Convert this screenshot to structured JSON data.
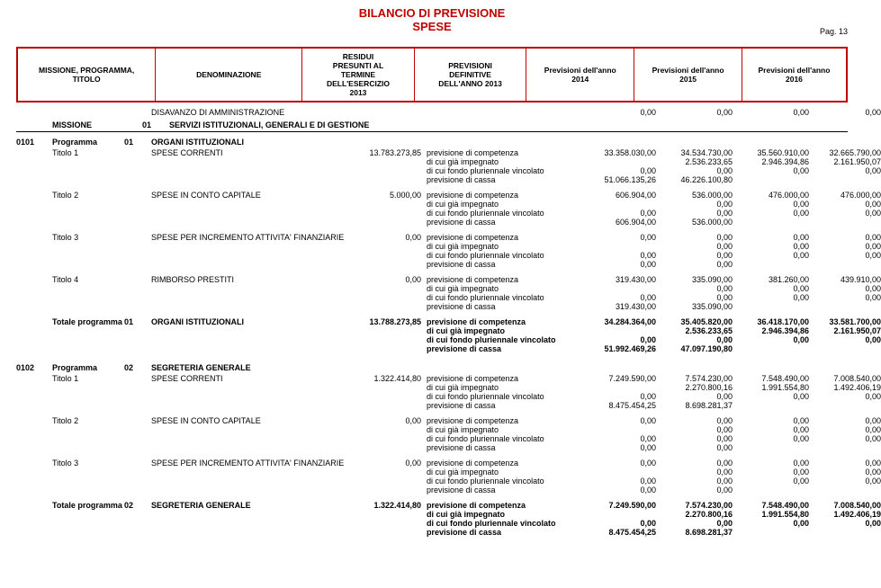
{
  "title_line1": "BILANCIO DI PREVISIONE",
  "title_line2": "SPESE",
  "page_label": "Pag. 13",
  "colors": {
    "accent": "#c00000",
    "text": "#000000",
    "bg": "#ffffff"
  },
  "header": {
    "col1": "MISSIONE, PROGRAMMA,\nTITOLO",
    "col2": "DENOMINAZIONE",
    "col3": "RESIDUI\nPRESUNTI AL\nTERMINE\nDELL'ESERCIZIO\n2013",
    "col4": "PREVISIONI\nDEFINITIVE\nDELL'ANNO 2013",
    "col5": "Previsioni dell'anno\n2014",
    "col6": "Previsioni dell'anno\n2015",
    "col7": "Previsioni dell'anno\n2016"
  },
  "disavanzo": {
    "label": "DISAVANZO DI AMMINISTRAZIONE",
    "v1": "0,00",
    "v2": "0,00",
    "v3": "0,00",
    "v4": "0,00"
  },
  "missione": {
    "label": "MISSIONE",
    "code": "01",
    "name": "SERVIZI ISTITUZIONALI, GENERALI E DI GESTIONE"
  },
  "prog1": {
    "code": "0101",
    "label": "Programma",
    "sub": "01",
    "name": "ORGANI ISTITUZIONALI"
  },
  "desc": {
    "competenza": "previsione di competenza",
    "impegnato": "di cui già impegnato",
    "fondo": "di cui fondo pluriennale vincolato",
    "cassa": "previsione di cassa"
  },
  "t": {
    "t1": {
      "label": "Titolo 1",
      "name": "SPESE CORRENTI",
      "residui": "13.783.273,85",
      "l1": {
        "v1": "33.358.030,00",
        "v2": "34.534.730,00",
        "v3": "35.560.910,00",
        "v4": "32.665.790,00"
      },
      "l2": {
        "v1": "",
        "v2": "2.536.233,65",
        "v3": "2.946.394,86",
        "v4": "2.161.950,07"
      },
      "l3": {
        "v1": "0,00",
        "v2": "0,00",
        "v3": "0,00",
        "v4": "0,00"
      },
      "l4": {
        "v1": "51.066.135,26",
        "v2": "46.226.100,80",
        "v3": "",
        "v4": ""
      }
    },
    "t2": {
      "label": "Titolo 2",
      "name": "SPESE IN CONTO CAPITALE",
      "residui": "5.000,00",
      "l1": {
        "v1": "606.904,00",
        "v2": "536.000,00",
        "v3": "476.000,00",
        "v4": "476.000,00"
      },
      "l2": {
        "v1": "",
        "v2": "0,00",
        "v3": "0,00",
        "v4": "0,00"
      },
      "l3": {
        "v1": "0,00",
        "v2": "0,00",
        "v3": "0,00",
        "v4": "0,00"
      },
      "l4": {
        "v1": "606.904,00",
        "v2": "536.000,00",
        "v3": "",
        "v4": ""
      }
    },
    "t3": {
      "label": "Titolo 3",
      "name": "SPESE PER INCREMENTO ATTIVITA' FINANZIARIE",
      "residui": "0,00",
      "l1": {
        "v1": "0,00",
        "v2": "0,00",
        "v3": "0,00",
        "v4": "0,00"
      },
      "l2": {
        "v1": "",
        "v2": "0,00",
        "v3": "0,00",
        "v4": "0,00"
      },
      "l3": {
        "v1": "0,00",
        "v2": "0,00",
        "v3": "0,00",
        "v4": "0,00"
      },
      "l4": {
        "v1": "0,00",
        "v2": "0,00",
        "v3": "",
        "v4": ""
      }
    },
    "t4": {
      "label": "Titolo 4",
      "name": "RIMBORSO PRESTITI",
      "residui": "0,00",
      "l1": {
        "v1": "319.430,00",
        "v2": "335.090,00",
        "v3": "381.260,00",
        "v4": "439.910,00"
      },
      "l2": {
        "v1": "",
        "v2": "0,00",
        "v3": "0,00",
        "v4": "0,00"
      },
      "l3": {
        "v1": "0,00",
        "v2": "0,00",
        "v3": "0,00",
        "v4": "0,00"
      },
      "l4": {
        "v1": "319.430,00",
        "v2": "335.090,00",
        "v3": "",
        "v4": ""
      }
    }
  },
  "tot1": {
    "label": "Totale programma",
    "sub": "01",
    "name": "ORGANI ISTITUZIONALI",
    "residui": "13.788.273,85",
    "l1": {
      "v1": "34.284.364,00",
      "v2": "35.405.820,00",
      "v3": "36.418.170,00",
      "v4": "33.581.700,00"
    },
    "l2": {
      "v1": "",
      "v2": "2.536.233,65",
      "v3": "2.946.394,86",
      "v4": "2.161.950,07"
    },
    "l3": {
      "v1": "0,00",
      "v2": "0,00",
      "v3": "0,00",
      "v4": "0,00"
    },
    "l4": {
      "v1": "51.992.469,26",
      "v2": "47.097.190,80",
      "v3": "",
      "v4": ""
    }
  },
  "prog2": {
    "code": "0102",
    "label": "Programma",
    "sub": "02",
    "name": "SEGRETERIA GENERALE"
  },
  "p2": {
    "t1": {
      "label": "Titolo 1",
      "name": "SPESE CORRENTI",
      "residui": "1.322.414,80",
      "l1": {
        "v1": "7.249.590,00",
        "v2": "7.574.230,00",
        "v3": "7.548.490,00",
        "v4": "7.008.540,00"
      },
      "l2": {
        "v1": "",
        "v2": "2.270.800,16",
        "v3": "1.991.554,80",
        "v4": "1.492.406,19"
      },
      "l3": {
        "v1": "0,00",
        "v2": "0,00",
        "v3": "0,00",
        "v4": "0,00"
      },
      "l4": {
        "v1": "8.475.454,25",
        "v2": "8.698.281,37",
        "v3": "",
        "v4": ""
      }
    },
    "t2": {
      "label": "Titolo 2",
      "name": "SPESE IN CONTO CAPITALE",
      "residui": "0,00",
      "l1": {
        "v1": "0,00",
        "v2": "0,00",
        "v3": "0,00",
        "v4": "0,00"
      },
      "l2": {
        "v1": "",
        "v2": "0,00",
        "v3": "0,00",
        "v4": "0,00"
      },
      "l3": {
        "v1": "0,00",
        "v2": "0,00",
        "v3": "0,00",
        "v4": "0,00"
      },
      "l4": {
        "v1": "0,00",
        "v2": "0,00",
        "v3": "",
        "v4": ""
      }
    },
    "t3": {
      "label": "Titolo 3",
      "name": "SPESE PER INCREMENTO ATTIVITA' FINANZIARIE",
      "residui": "0,00",
      "l1": {
        "v1": "0,00",
        "v2": "0,00",
        "v3": "0,00",
        "v4": "0,00"
      },
      "l2": {
        "v1": "",
        "v2": "0,00",
        "v3": "0,00",
        "v4": "0,00"
      },
      "l3": {
        "v1": "0,00",
        "v2": "0,00",
        "v3": "0,00",
        "v4": "0,00"
      },
      "l4": {
        "v1": "0,00",
        "v2": "0,00",
        "v3": "",
        "v4": ""
      }
    }
  },
  "tot2": {
    "label": "Totale programma",
    "sub": "02",
    "name": "SEGRETERIA GENERALE",
    "residui": "1.322.414,80",
    "l1": {
      "v1": "7.249.590,00",
      "v2": "7.574.230,00",
      "v3": "7.548.490,00",
      "v4": "7.008.540,00"
    },
    "l2": {
      "v1": "",
      "v2": "2.270.800,16",
      "v3": "1.991.554,80",
      "v4": "1.492.406,19"
    },
    "l3": {
      "v1": "0,00",
      "v2": "0,00",
      "v3": "0,00",
      "v4": "0,00"
    },
    "l4": {
      "v1": "8.475.454,25",
      "v2": "8.698.281,37",
      "v3": "",
      "v4": ""
    }
  }
}
